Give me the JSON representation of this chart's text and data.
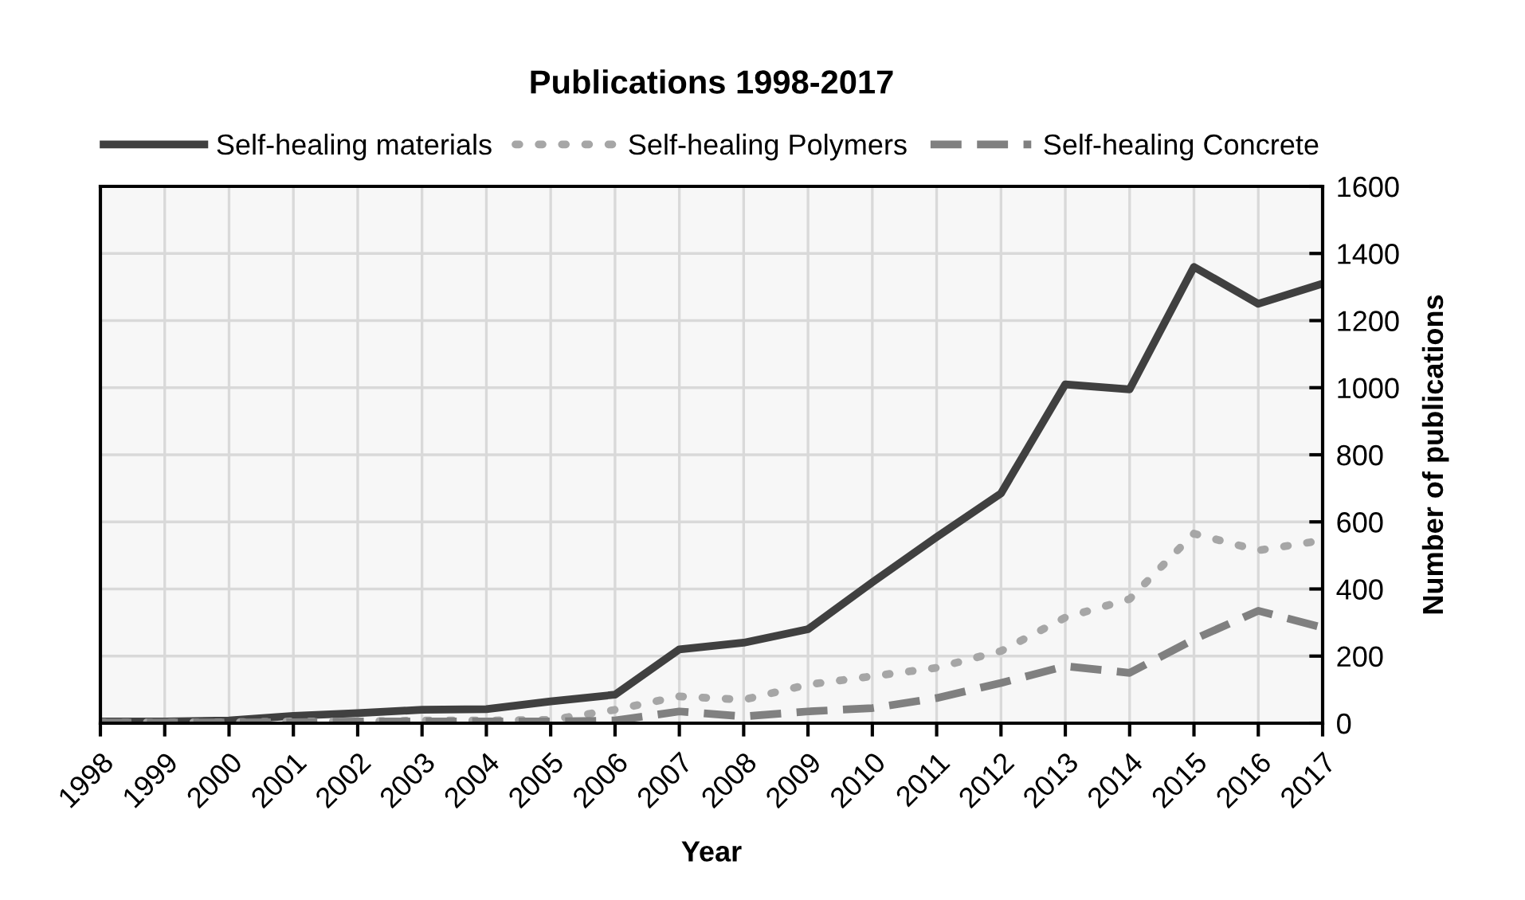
{
  "chart_data": {
    "type": "line",
    "title": "Publications 1998-2017",
    "xlabel": "Year",
    "ylabel": "Number of publications",
    "categories": [
      "1998",
      "1999",
      "2000",
      "2001",
      "2002",
      "2003",
      "2004",
      "2005",
      "2006",
      "2007",
      "2008",
      "2009",
      "2010",
      "2011",
      "2012",
      "2013",
      "2014",
      "2015",
      "2016",
      "2017"
    ],
    "series": [
      {
        "name": "Self-healing materials",
        "color": "#404040",
        "line_style": "solid",
        "values": [
          5,
          5,
          8,
          22,
          30,
          40,
          42,
          65,
          85,
          220,
          240,
          280,
          420,
          555,
          685,
          1010,
          995,
          1360,
          1250,
          1310
        ]
      },
      {
        "name": "Self-healing Polymers",
        "color": "#a6a6a6",
        "line_style": "dotted",
        "values": [
          3,
          3,
          3,
          5,
          5,
          8,
          8,
          10,
          40,
          80,
          70,
          115,
          140,
          165,
          215,
          315,
          370,
          565,
          515,
          545
        ]
      },
      {
        "name": "Self-healing Concrete",
        "color": "#808080",
        "line_style": "dashed",
        "values": [
          2,
          2,
          2,
          3,
          5,
          5,
          5,
          5,
          8,
          35,
          20,
          35,
          45,
          75,
          120,
          170,
          150,
          250,
          335,
          285
        ]
      }
    ],
    "ylim": [
      0,
      1600
    ],
    "yticks": [
      0,
      200,
      400,
      600,
      800,
      1000,
      1200,
      1400,
      1600
    ],
    "grid": true,
    "legend": "top",
    "marker": "none"
  }
}
